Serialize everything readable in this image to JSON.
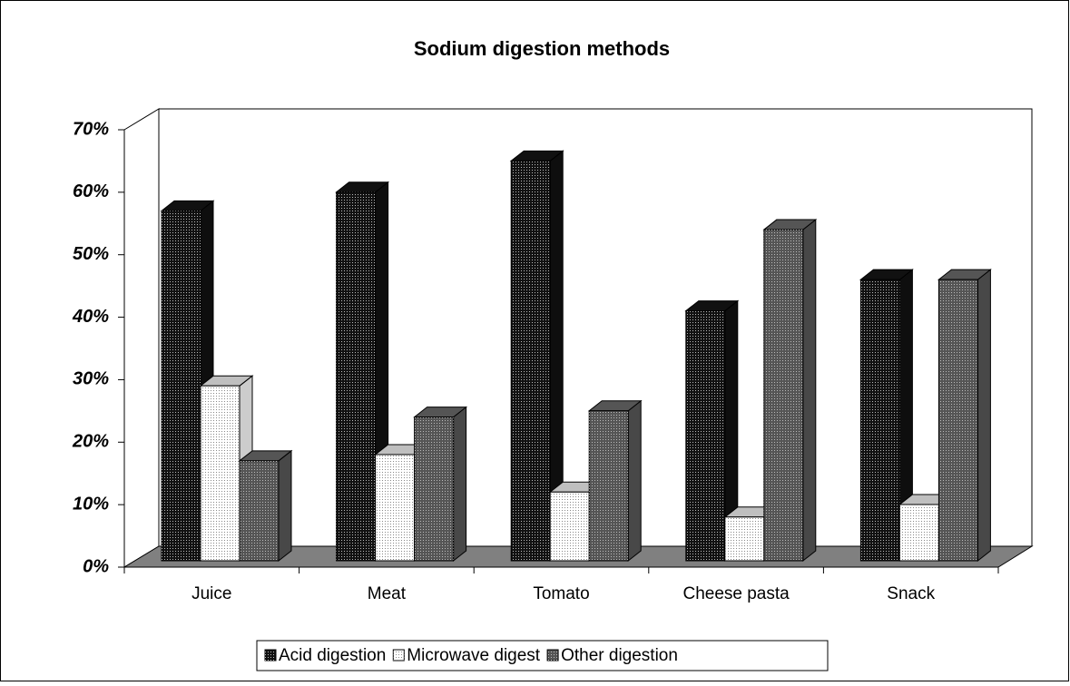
{
  "chart_data": {
    "type": "bar3d",
    "title": "Sodium digestion methods",
    "categories": [
      "Juice",
      "Meat",
      "Tomato",
      "Cheese pasta",
      "Snack"
    ],
    "series": [
      {
        "name": "Acid digestion",
        "color": "#111111",
        "values": [
          56,
          59,
          64,
          40,
          45
        ]
      },
      {
        "name": "Microwave digest",
        "color": "#ffffff",
        "values": [
          28,
          17,
          11,
          7,
          9
        ]
      },
      {
        "name": "Other digestion",
        "color": "#555555",
        "values": [
          16,
          23,
          24,
          53,
          45
        ]
      }
    ],
    "ylim": [
      0,
      70
    ],
    "yticks": [
      {
        "value": 0,
        "label": "0%"
      },
      {
        "value": 10,
        "label": "10%"
      },
      {
        "value": 20,
        "label": "20%"
      },
      {
        "value": 30,
        "label": "30%"
      },
      {
        "value": 40,
        "label": "40%"
      },
      {
        "value": 50,
        "label": "50%"
      },
      {
        "value": 60,
        "label": "60%"
      },
      {
        "value": 70,
        "label": "70%"
      }
    ],
    "legend": "bottom"
  }
}
